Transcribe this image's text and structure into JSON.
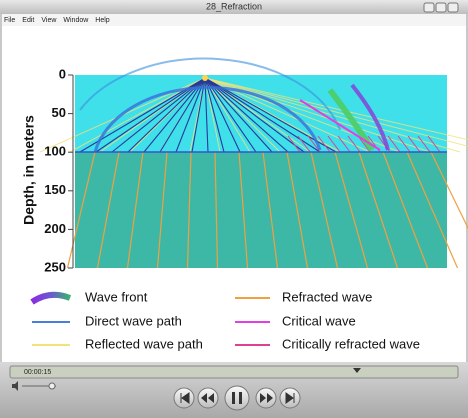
{
  "window": {
    "title": "28_Refraction",
    "menu": [
      "File",
      "Edit",
      "View",
      "Window",
      "Help"
    ]
  },
  "plot": {
    "axis_label": "Depth, in meters",
    "yticks": [
      0,
      50,
      100,
      150,
      200,
      250
    ]
  },
  "legend": [
    "Wave front",
    "Direct wave path",
    "Reflected wave path",
    "Refracted wave",
    "Critical wave",
    "Critically refracted wave"
  ],
  "player": {
    "time": "00:00:15"
  }
}
